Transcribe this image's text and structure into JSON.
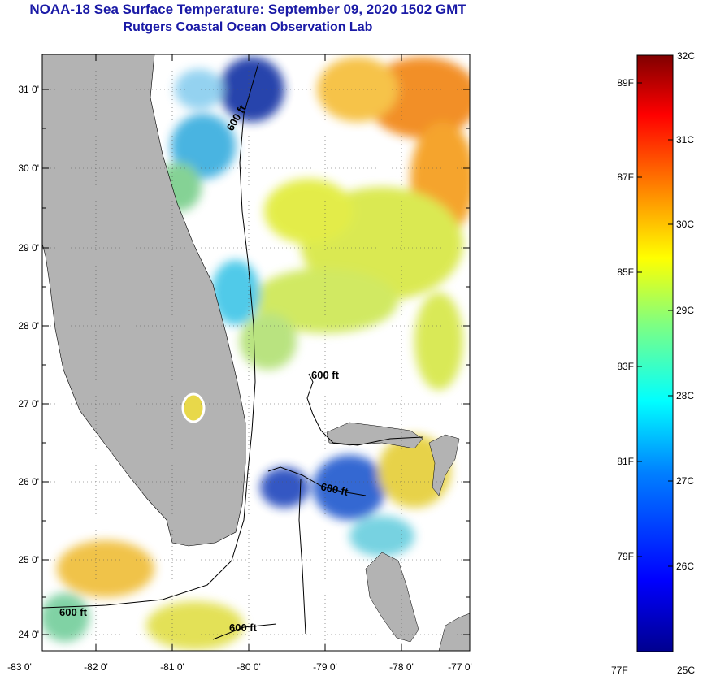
{
  "header": {
    "title": "NOAA-18 Sea Surface Temperature:  September 09, 2020 1502 GMT",
    "subtitle": "Rutgers Coastal Ocean Observation Lab"
  },
  "map": {
    "lat_labels": [
      "31 0'",
      "30 0'",
      "29 0'",
      "28 0'",
      "27 0'",
      "26 0'",
      "25 0'",
      "24 0'"
    ],
    "lon_labels": [
      "-83 0'",
      "-82 0'",
      "-81 0'",
      "-80 0'",
      "-79 0'",
      "-78 0'",
      "-77 0'"
    ],
    "contour_labels": [
      "600 ft",
      "600 ft",
      "600 ft",
      "600 ft",
      "600 ft"
    ]
  },
  "colorbar": {
    "top_label": "32C",
    "bottom_left": "77F",
    "bottom_right": "25C",
    "fahrenheit_labels": [
      "89F",
      "87F",
      "85F",
      "83F",
      "81F",
      "79F"
    ],
    "celsius_labels": [
      "31C",
      "30C",
      "29C",
      "28C",
      "27C",
      "26C"
    ]
  },
  "colors": {
    "title": "#1a1aa6",
    "land": "#b3b3b3",
    "frame": "#000000"
  }
}
